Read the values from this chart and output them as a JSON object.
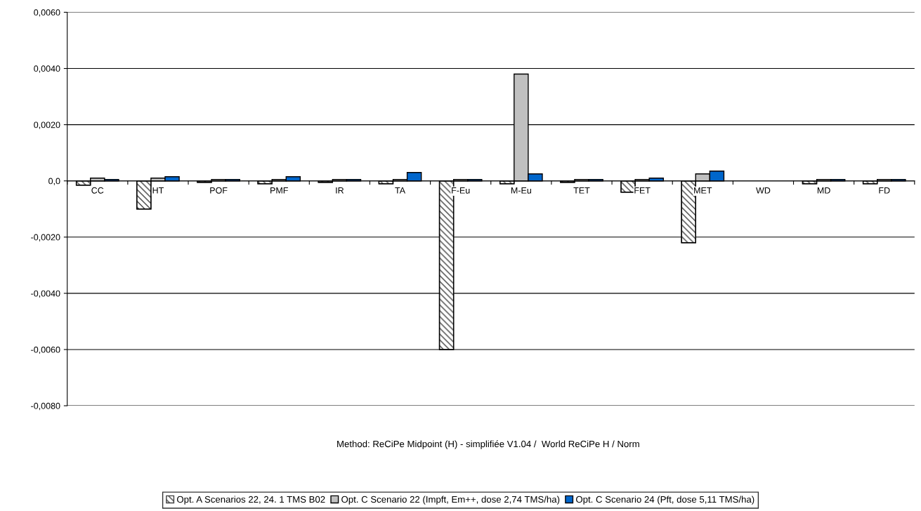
{
  "chart_data": {
    "type": "bar",
    "xlabel": "Method: ReCiPe Midpoint (H) - simplifiée V1.04 /  World ReCiPe H / Norm",
    "categories": [
      "CC",
      "HT",
      "POF",
      "PMF",
      "IR",
      "TA",
      "F-Eu",
      "M-Eu",
      "TET",
      "FET",
      "MET",
      "WD",
      "MD",
      "FD"
    ],
    "series": [
      {
        "name": "Opt. A Scenarios 22, 24. 1 TMS B02",
        "color": "#404040",
        "values": [
          -0.00015,
          -0.001,
          -5e-05,
          -0.0001,
          -5e-05,
          -0.0001,
          -0.006,
          -0.0001,
          -5e-05,
          -0.0004,
          -0.0022,
          null,
          -0.0001,
          -0.0001
        ]
      },
      {
        "name": "Opt. C Scenario 22 (Impft, Em++, dose 2,74 TMS/ha)",
        "color": "#c0c0c0",
        "values": [
          0.0001,
          0.0001,
          5e-05,
          5e-05,
          5e-05,
          5e-05,
          5e-05,
          0.0038,
          5e-05,
          5e-05,
          0.00025,
          null,
          5e-05,
          5e-05
        ]
      },
      {
        "name": "Opt. C Scenario 24 (Pft, dose 5,11 TMS/ha)",
        "color": "#0066cc",
        "values": [
          5e-05,
          0.00015,
          5e-05,
          0.00015,
          5e-05,
          0.0003,
          5e-05,
          0.00025,
          5e-05,
          0.0001,
          0.00035,
          null,
          5e-05,
          5e-05
        ]
      }
    ],
    "ylim": [
      -0.008,
      0.006
    ],
    "yticks": [
      {
        "value": -0.008,
        "label": "-0,0080"
      },
      {
        "value": -0.006,
        "label": "-0,0060"
      },
      {
        "value": -0.004,
        "label": "-0,0040"
      },
      {
        "value": -0.002,
        "label": "-0,0020"
      },
      {
        "value": 0,
        "label": "0,0"
      },
      {
        "value": 0.002,
        "label": "0,0020"
      },
      {
        "value": 0.004,
        "label": "0,0040"
      },
      {
        "value": 0.006,
        "label": "0,0060"
      }
    ],
    "grid": "y",
    "legend": "bottom"
  }
}
